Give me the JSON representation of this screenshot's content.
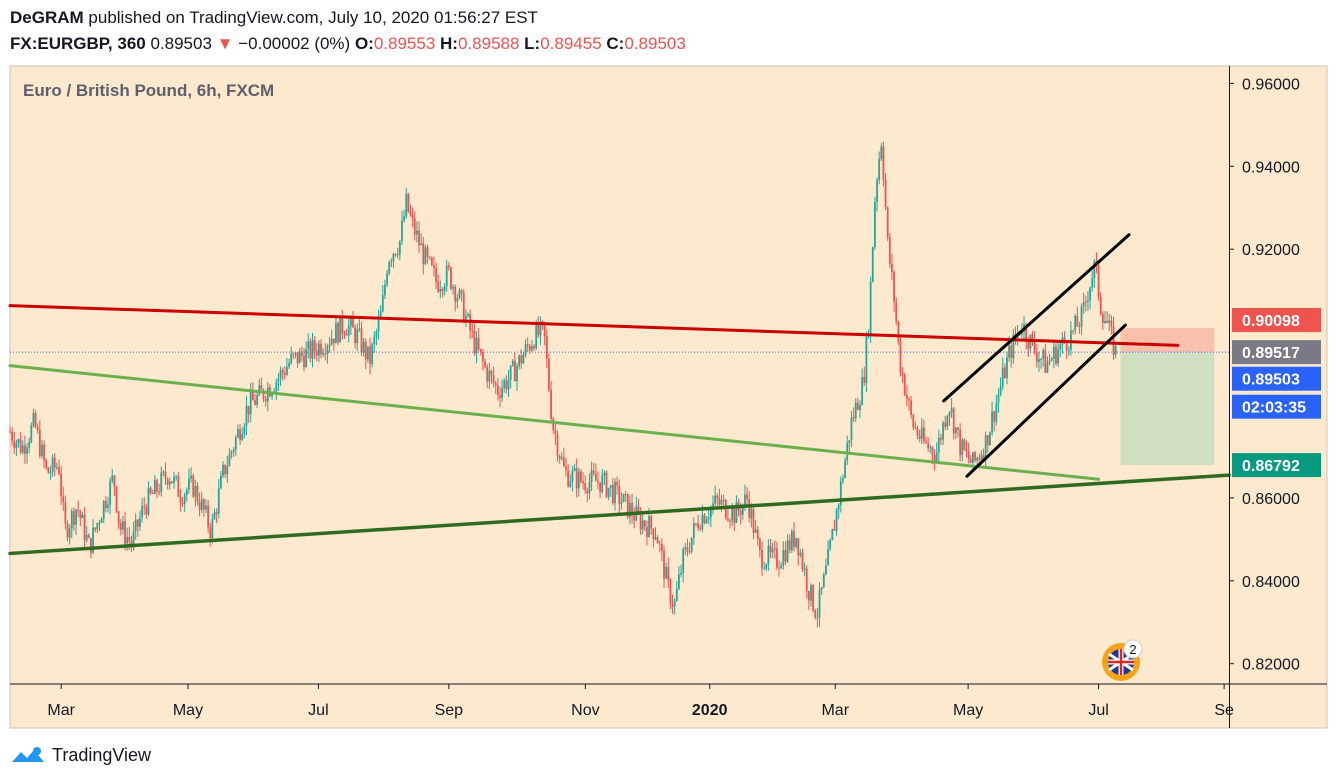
{
  "header": {
    "author": "DeGRAM",
    "published_text": "published on TradingView.com, July 10, 2020 01:56:27 EST",
    "symbol": "FX:EURGBP, 360",
    "last": "0.89503",
    "change_arrow": "▼",
    "change": "−0.00002 (0%)",
    "o_label": "O:",
    "o": "0.89553",
    "h_label": "H:",
    "h": "0.89588",
    "l_label": "L:",
    "l": "0.89455",
    "c_label": "C:",
    "c": "0.89503"
  },
  "footer": {
    "brand": "TradingView"
  },
  "colors": {
    "background": "#fde9cd",
    "up": "#26a69a",
    "down": "#ef5350",
    "resistance": "#cc0000",
    "support_light": "#6ab04c",
    "support_dark": "#2e6b1e",
    "channel": "#000000",
    "price_badge": "#2962ff"
  },
  "badge": {
    "count": "2",
    "icon": "uk-flag-icon"
  },
  "chart_data": {
    "type": "candlestick",
    "title": "Euro / British Pound, 6h, FXCM",
    "x_ticks": [
      "Mar",
      "May",
      "Jul",
      "Sep",
      "Nov",
      "2020",
      "Mar",
      "May",
      "Jul",
      "Se"
    ],
    "y_ticks": [
      "0.96000",
      "0.94000",
      "0.92000",
      "0.86000",
      "0.84000",
      "0.82000"
    ],
    "ylim": [
      0.8151,
      0.9642
    ],
    "price_labels": [
      {
        "value": 0.90098,
        "text": "0.90098",
        "color": "#ef5350"
      },
      {
        "value": 0.89517,
        "text": "0.89517",
        "color": "#787b86"
      },
      {
        "value": 0.89503,
        "text": "0.89503",
        "color": "#2962ff"
      },
      {
        "value": 0.89503,
        "text": "02:03:35",
        "color": "#2962ff",
        "offset_row": 1
      },
      {
        "value": 0.86792,
        "text": "0.86792",
        "color": "#089981"
      }
    ],
    "price_path": [
      [
        0,
        0.876
      ],
      [
        0.01,
        0.872
      ],
      [
        0.02,
        0.878
      ],
      [
        0.03,
        0.866
      ],
      [
        0.04,
        0.868
      ],
      [
        0.045,
        0.852
      ],
      [
        0.055,
        0.858
      ],
      [
        0.065,
        0.848
      ],
      [
        0.075,
        0.857
      ],
      [
        0.085,
        0.865
      ],
      [
        0.09,
        0.853
      ],
      [
        0.1,
        0.849
      ],
      [
        0.11,
        0.858
      ],
      [
        0.12,
        0.862
      ],
      [
        0.13,
        0.866
      ],
      [
        0.14,
        0.861
      ],
      [
        0.15,
        0.863
      ],
      [
        0.16,
        0.856
      ],
      [
        0.165,
        0.852
      ],
      [
        0.175,
        0.866
      ],
      [
        0.185,
        0.874
      ],
      [
        0.195,
        0.882
      ],
      [
        0.21,
        0.886
      ],
      [
        0.22,
        0.889
      ],
      [
        0.23,
        0.893
      ],
      [
        0.245,
        0.895
      ],
      [
        0.26,
        0.898
      ],
      [
        0.275,
        0.902
      ],
      [
        0.285,
        0.899
      ],
      [
        0.295,
        0.893
      ],
      [
        0.305,
        0.905
      ],
      [
        0.31,
        0.918
      ],
      [
        0.32,
        0.922
      ],
      [
        0.325,
        0.931
      ],
      [
        0.33,
        0.926
      ],
      [
        0.34,
        0.918
      ],
      [
        0.35,
        0.912
      ],
      [
        0.36,
        0.914
      ],
      [
        0.37,
        0.907
      ],
      [
        0.38,
        0.898
      ],
      [
        0.39,
        0.891
      ],
      [
        0.4,
        0.886
      ],
      [
        0.41,
        0.889
      ],
      [
        0.42,
        0.894
      ],
      [
        0.43,
        0.899
      ],
      [
        0.438,
        0.9
      ],
      [
        0.445,
        0.878
      ],
      [
        0.455,
        0.866
      ],
      [
        0.47,
        0.864
      ],
      [
        0.485,
        0.864
      ],
      [
        0.5,
        0.86
      ],
      [
        0.515,
        0.855
      ],
      [
        0.53,
        0.852
      ],
      [
        0.54,
        0.838
      ],
      [
        0.545,
        0.834
      ],
      [
        0.552,
        0.845
      ],
      [
        0.565,
        0.855
      ],
      [
        0.58,
        0.859
      ],
      [
        0.595,
        0.856
      ],
      [
        0.605,
        0.86
      ],
      [
        0.615,
        0.846
      ],
      [
        0.63,
        0.845
      ],
      [
        0.645,
        0.851
      ],
      [
        0.655,
        0.838
      ],
      [
        0.662,
        0.832
      ],
      [
        0.67,
        0.843
      ],
      [
        0.68,
        0.86
      ],
      [
        0.69,
        0.878
      ],
      [
        0.7,
        0.888
      ],
      [
        0.705,
        0.905
      ],
      [
        0.71,
        0.935
      ],
      [
        0.715,
        0.947
      ],
      [
        0.72,
        0.921
      ],
      [
        0.725,
        0.909
      ],
      [
        0.73,
        0.893
      ],
      [
        0.74,
        0.878
      ],
      [
        0.75,
        0.873
      ],
      [
        0.76,
        0.871
      ],
      [
        0.77,
        0.883
      ],
      [
        0.78,
        0.872
      ],
      [
        0.79,
        0.868
      ],
      [
        0.8,
        0.873
      ],
      [
        0.81,
        0.884
      ],
      [
        0.82,
        0.895
      ],
      [
        0.83,
        0.902
      ],
      [
        0.84,
        0.896
      ],
      [
        0.85,
        0.892
      ],
      [
        0.86,
        0.896
      ],
      [
        0.87,
        0.899
      ],
      [
        0.88,
        0.904
      ],
      [
        0.885,
        0.911
      ],
      [
        0.89,
        0.916
      ],
      [
        0.895,
        0.906
      ],
      [
        0.9,
        0.902
      ],
      [
        0.905,
        0.897
      ],
      [
        0.907,
        0.895
      ]
    ],
    "lines": [
      {
        "name": "resistance",
        "color": "#cc0000",
        "width": 3,
        "from": [
          0.0,
          0.9064
        ],
        "to": [
          0.958,
          0.8968
        ]
      },
      {
        "name": "support-light",
        "color": "#6ab04c",
        "width": 3,
        "from": [
          0.0,
          0.8919
        ],
        "to": [
          0.893,
          0.8645
        ]
      },
      {
        "name": "support-dark",
        "color": "#2e6b1e",
        "width": 3.5,
        "from": [
          0.0,
          0.8466
        ],
        "to": [
          1.0,
          0.8655
        ]
      },
      {
        "name": "channel-upper",
        "color": "#000000",
        "width": 3,
        "from": [
          0.766,
          0.8834
        ],
        "to": [
          0.918,
          0.9235
        ]
      },
      {
        "name": "channel-lower",
        "color": "#000000",
        "width": 3,
        "from": [
          0.785,
          0.8652
        ],
        "to": [
          0.915,
          0.9017
        ]
      }
    ],
    "zones": [
      {
        "name": "stop-zone",
        "color": "#f8b8a6",
        "x0": 0.911,
        "x1": 0.988,
        "y0": 0.89517,
        "y1": 0.90098
      },
      {
        "name": "target-zone",
        "color": "#c8dcc0",
        "x0": 0.911,
        "x1": 0.988,
        "y0": 0.86792,
        "y1": 0.89517
      }
    ],
    "current_price_line": 0.89517
  }
}
